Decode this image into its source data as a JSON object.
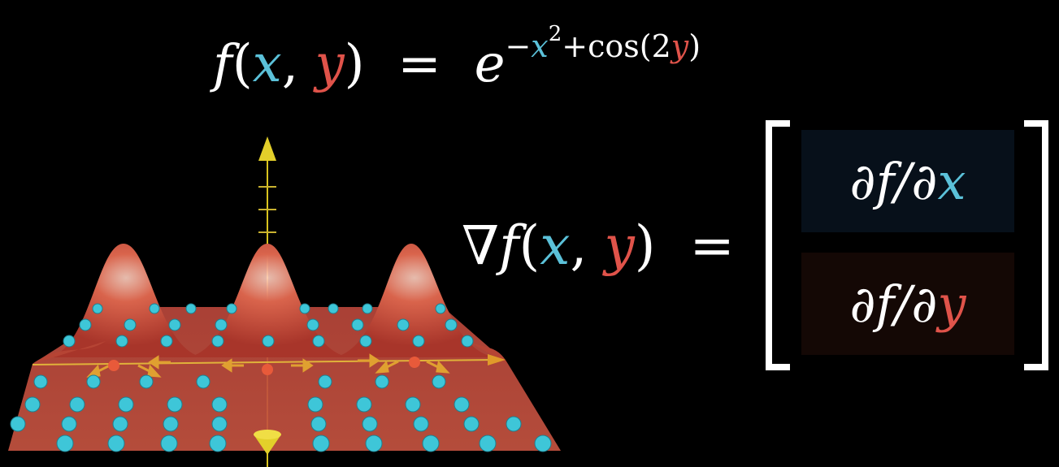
{
  "function_eq": {
    "f": "f",
    "lparen": "(",
    "x": "x",
    "comma": ",",
    "y": "y",
    "rparen": ")",
    "equals": "=",
    "base": "e",
    "minus": "−",
    "x2": "x",
    "two": "2",
    "plus_cos": "+cos(2",
    "y2": "y",
    "close": ")"
  },
  "gradient_eq": {
    "nabla": "∇",
    "f": "f",
    "lparen": "(",
    "x": "x",
    "comma": ",",
    "y": "y",
    "rparen": ")",
    "equals": "="
  },
  "gradient_vector": {
    "entries": [
      {
        "prefix": "∂f/∂",
        "var": "x"
      },
      {
        "prefix": "∂f/∂",
        "var": "y"
      }
    ]
  },
  "colors": {
    "x_color": "#5bc1d9",
    "y_color": "#e0534a",
    "surface": "#c94a35",
    "axis_arrow": "#d9c31e",
    "dot": "#3ec6d8"
  },
  "plot": {
    "function_expression": "exp(-x^2 + cos(2y))"
  }
}
